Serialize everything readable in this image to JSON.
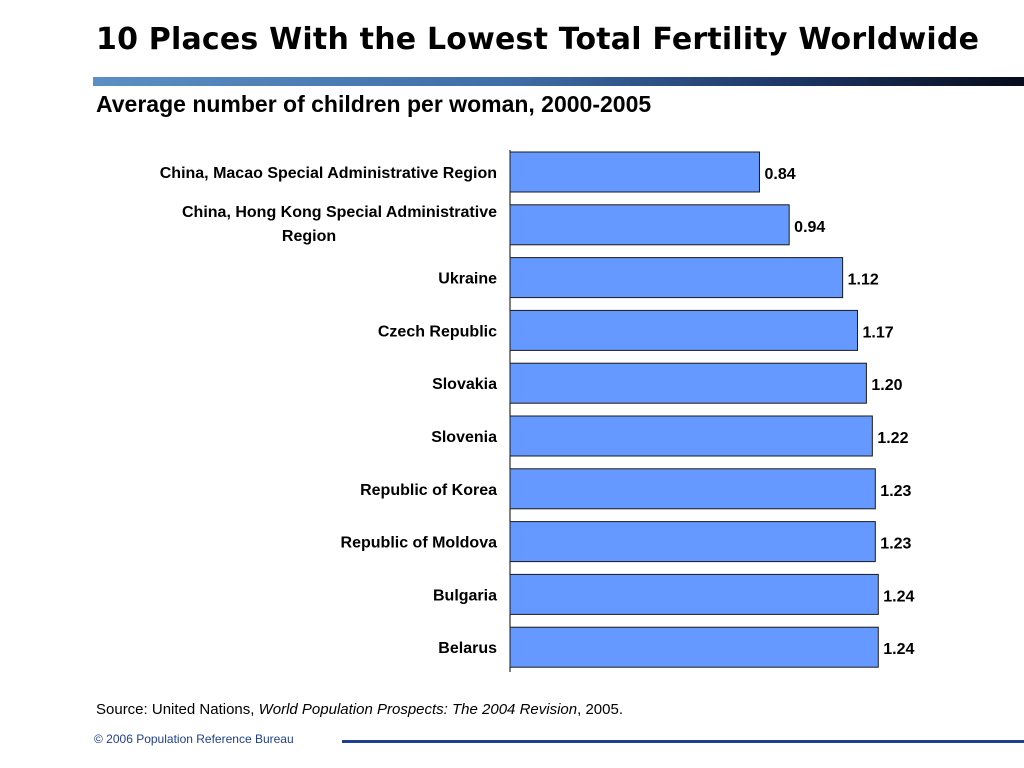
{
  "title": "10 Places With the Lowest Total Fertility Worldwide",
  "subtitle": "Average number of children per woman, 2000-2005",
  "source": {
    "prefix": "Source: United Nations, ",
    "publication": "World Population Prospects: The 2004 Revision",
    "suffix": ", 2005."
  },
  "footer": "© 2006 Population Reference Bureau",
  "colors": {
    "bar": "#6699ff",
    "bar_border": "#1a1a1a",
    "rule_dark": "#1f3f8f"
  },
  "chart_data": {
    "type": "bar",
    "orientation": "horizontal",
    "categories": [
      [
        "China, Macao Special Administrative Region"
      ],
      [
        "China, Hong Kong Special Administrative",
        "Region"
      ],
      [
        "Ukraine"
      ],
      [
        "Czech Republic"
      ],
      [
        "Slovakia"
      ],
      [
        "Slovenia"
      ],
      [
        "Republic of Korea"
      ],
      [
        "Republic of Moldova"
      ],
      [
        "Bulgaria"
      ],
      [
        "Belarus"
      ]
    ],
    "values": [
      0.84,
      0.94,
      1.12,
      1.17,
      1.2,
      1.22,
      1.23,
      1.23,
      1.24,
      1.24
    ],
    "data_labels": [
      "0.84",
      "0.94",
      "1.12",
      "1.17",
      "1.20",
      "1.22",
      "1.23",
      "1.23",
      "1.24",
      "1.24"
    ],
    "xlim": [
      0,
      1.4
    ],
    "grid": false,
    "legend": "none"
  }
}
